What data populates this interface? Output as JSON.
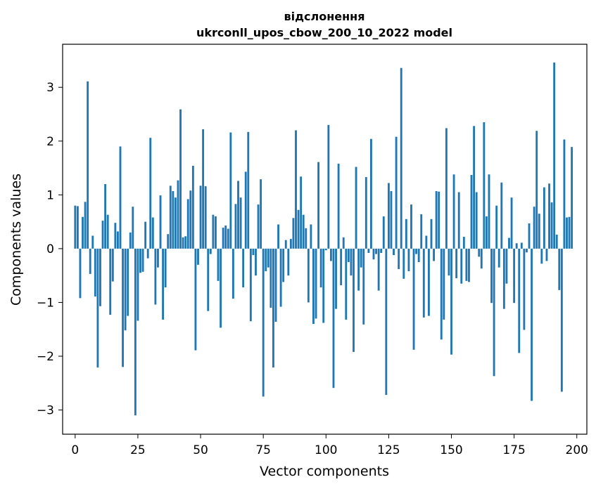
{
  "chart_data": {
    "type": "bar",
    "title_line1": "відслонення",
    "title_line2": "ukrconll_upos_cbow_200_10_2022 model",
    "xlabel": "Vector components",
    "ylabel": "Components values",
    "xlim": [
      -5,
      204
    ],
    "ylim": [
      -3.45,
      3.8
    ],
    "xticks": [
      0,
      25,
      50,
      75,
      100,
      125,
      150,
      175,
      200
    ],
    "yticks": [
      -3,
      -2,
      -1,
      0,
      1,
      2,
      3
    ],
    "ytick_labels": [
      "−3",
      "−2",
      "−1",
      "0",
      "1",
      "2",
      "3"
    ],
    "color": "#1f77b4",
    "values": [
      0.8,
      0.79,
      -0.92,
      0.59,
      0.87,
      3.11,
      -0.47,
      0.24,
      -0.89,
      -2.21,
      -1.07,
      0.52,
      1.2,
      0.63,
      -1.23,
      -0.61,
      0.48,
      0.32,
      1.9,
      -2.2,
      -1.52,
      -1.25,
      0.3,
      0.78,
      -3.1,
      -1.34,
      -0.45,
      -0.43,
      0.5,
      -0.18,
      2.06,
      0.58,
      -1.04,
      -0.35,
      0.99,
      -1.32,
      -0.72,
      0.27,
      1.17,
      1.07,
      0.95,
      1.27,
      2.59,
      0.21,
      0.23,
      0.92,
      1.08,
      1.54,
      -1.89,
      -0.3,
      1.17,
      2.22,
      1.16,
      -1.16,
      -0.1,
      0.63,
      0.6,
      -0.6,
      -1.47,
      0.39,
      0.43,
      0.37,
      2.16,
      -0.93,
      0.83,
      1.26,
      0.95,
      -0.72,
      1.43,
      2.17,
      -1.35,
      -0.12,
      -0.5,
      0.82,
      1.29,
      -2.75,
      -0.42,
      -0.35,
      -1.1,
      -2.21,
      -1.36,
      0.45,
      -1.08,
      -0.62,
      0.16,
      -0.5,
      0.18,
      0.57,
      2.2,
      0.72,
      1.34,
      0.63,
      0.38,
      -1.0,
      0.45,
      -1.4,
      -1.3,
      1.61,
      -0.72,
      -1.38,
      -0.03,
      2.3,
      -0.23,
      -2.59,
      -1.12,
      1.58,
      -0.68,
      0.21,
      -1.32,
      -0.25,
      -0.5,
      -1.92,
      1.52,
      -0.78,
      -0.35,
      -1.41,
      1.33,
      -0.08,
      2.04,
      -0.2,
      -0.1,
      -0.78,
      -0.08,
      0.6,
      -2.72,
      1.22,
      1.07,
      -0.12,
      2.08,
      -0.38,
      3.36,
      -0.56,
      0.55,
      -0.42,
      0.82,
      -1.88,
      -0.1,
      -0.25,
      0.64,
      -1.28,
      0.24,
      -1.25,
      0.55,
      -0.23,
      1.07,
      1.06,
      -1.69,
      -1.32,
      2.24,
      -0.5,
      -1.97,
      1.38,
      -0.55,
      1.05,
      -0.65,
      0.22,
      -0.6,
      -0.62,
      1.37,
      2.28,
      1.05,
      -0.15,
      -0.37,
      2.35,
      0.6,
      1.38,
      -1.01,
      -2.37,
      0.8,
      -0.35,
      1.23,
      -1.12,
      -0.65,
      0.2,
      0.95,
      -1.01,
      0.1,
      -1.94,
      0.11,
      -1.51,
      -0.07,
      0.47,
      -2.83,
      0.78,
      2.19,
      0.65,
      -0.28,
      1.14,
      -0.23,
      1.21,
      0.86,
      3.46,
      0.26,
      -0.77,
      -2.66,
      2.03,
      0.58,
      0.59,
      1.89
    ]
  }
}
